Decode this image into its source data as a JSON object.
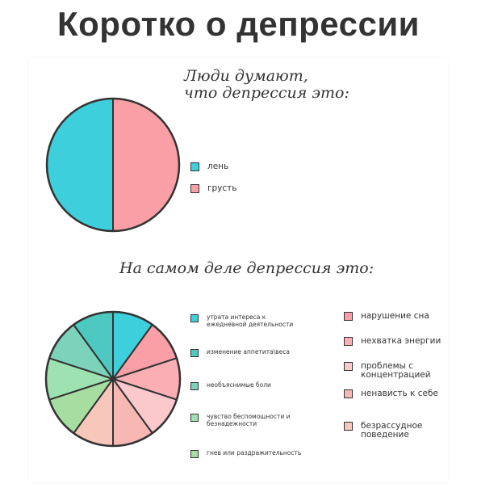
{
  "title": "Коротко о депрессии",
  "chart_data": [
    {
      "type": "pie",
      "heading": "Люди думают,\nчто депрессия это:",
      "slices": [
        {
          "label": "лень",
          "value": 50,
          "color": "#3ecfdc"
        },
        {
          "label": "грусть",
          "value": 50,
          "color": "#fa9fa5"
        }
      ]
    },
    {
      "type": "pie",
      "heading": "На самом деле депрессия это:",
      "slices": [
        {
          "label": "утрата интереса к\nежедневной деятельности",
          "value": 10,
          "color": "#3ecfdc"
        },
        {
          "label": "нарушение сна",
          "value": 10,
          "color": "#fa9fa5"
        },
        {
          "label": "нехватка энергии",
          "value": 10,
          "color": "#fbaeb4"
        },
        {
          "label": "проблемы с\nконцентрацией",
          "value": 10,
          "color": "#fbc9cc"
        },
        {
          "label": "ненависть к себе",
          "value": 10,
          "color": "#f7b7b2"
        },
        {
          "label": "безрассудное\nповедение",
          "value": 10,
          "color": "#f7c7bb"
        },
        {
          "label": "гнев или раздражительность",
          "value": 10,
          "color": "#a6dea2"
        },
        {
          "label": "чувство беспомощности и\nбезнадежности",
          "value": 10,
          "color": "#9ee2b1"
        },
        {
          "label": "необъяснимые боли",
          "value": 10,
          "color": "#7dd2bb"
        },
        {
          "label": "изменение аппетита\\веса",
          "value": 10,
          "color": "#4dc9c2"
        }
      ]
    }
  ]
}
